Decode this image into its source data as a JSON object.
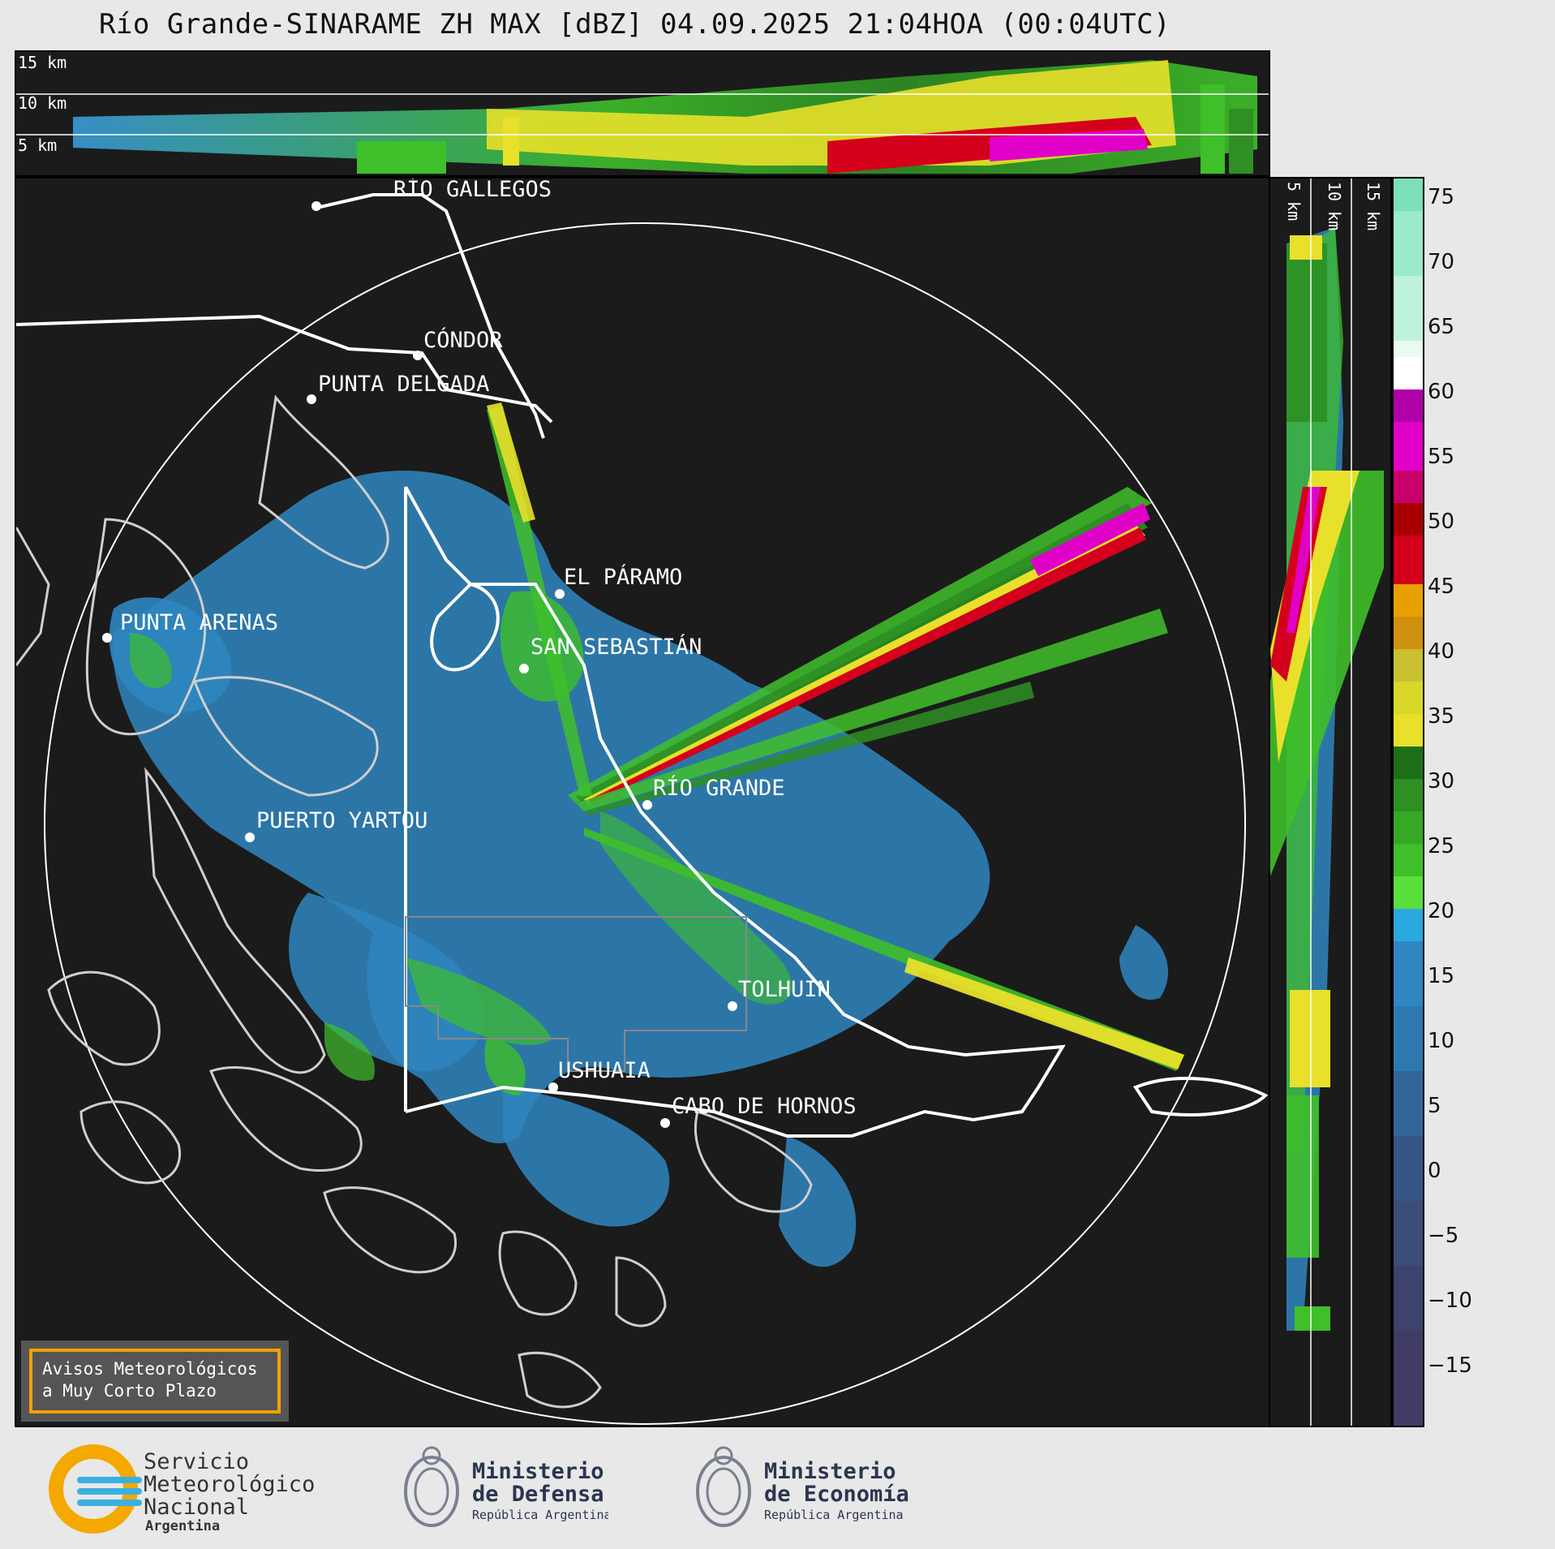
{
  "title": "Río Grande-SINARAME ZH MAX [dBZ] 04.09.2025 21:04HOA (00:04UTC)",
  "height_labels_top": [
    "15 km",
    "10 km",
    "5 km"
  ],
  "height_labels_side": [
    "5 km",
    "10 km",
    "15 km"
  ],
  "cities": [
    {
      "name": "RÍO GALLEGOS"
    },
    {
      "name": "CÓNDOR"
    },
    {
      "name": "PUNTA DELGADA"
    },
    {
      "name": "EL PÁRAMO"
    },
    {
      "name": "SAN SEBASTIÁN"
    },
    {
      "name": "PUNTA ARENAS"
    },
    {
      "name": "RÍO GRANDE"
    },
    {
      "name": "PUERTO YARTOU"
    },
    {
      "name": "TOLHUIN"
    },
    {
      "name": "USHUAIA"
    },
    {
      "name": "CABO DE HORNOS"
    }
  ],
  "colorbar": {
    "unit": "dBZ",
    "ticks": [
      "75",
      "70",
      "65",
      "60",
      "55",
      "50",
      "45",
      "40",
      "35",
      "30",
      "25",
      "20",
      "15",
      "10",
      "5",
      "0",
      "−5",
      "−10",
      "−15"
    ]
  },
  "badge": {
    "line1": "Avisos Meteorológicos",
    "line2": "a Muy Corto Plazo"
  },
  "logos": {
    "smn": {
      "line1": "Servicio",
      "line2": "Meteorológico",
      "line3": "Nacional",
      "line4": "Argentina"
    },
    "defensa": {
      "line1": "Ministerio",
      "line2": "de Defensa",
      "line3": "República Argentina"
    },
    "economia": {
      "line1": "Ministerio",
      "line2": "de Economía",
      "line3": "República Argentina"
    }
  },
  "colors": {
    "weak_echo": "#2f86c0",
    "moderate": "#3fbf2a",
    "strong": "#e8e02a",
    "very_strong": "#d4001c",
    "extreme": "#e000c8"
  }
}
